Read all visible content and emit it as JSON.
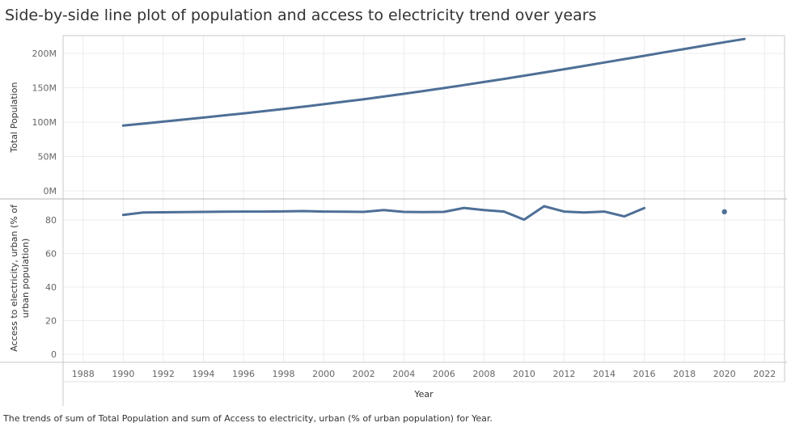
{
  "title": "Side-by-side line plot of population and access to electricity trend over years",
  "caption": "The trends of sum of Total Population and sum of Access to electricity, urban (% of urban population) for Year.",
  "colors": {
    "line": "#4e6f96",
    "grid": "#ececec",
    "border": "#c8c8c8"
  },
  "chart_data": [
    {
      "type": "line",
      "ylabel": "Total Population",
      "xlabel": "Year",
      "ylim": [
        0,
        215000000
      ],
      "yticks": [
        0,
        50000000,
        100000000,
        150000000,
        200000000
      ],
      "ytick_labels": [
        "0M",
        "50M",
        "100M",
        "150M",
        "200M"
      ],
      "grid": true,
      "series": [
        {
          "x": [
            1990,
            1991,
            1992,
            1993,
            1994,
            1995,
            1996,
            1997,
            1998,
            1999,
            2000,
            2001,
            2002,
            2003,
            2004,
            2005,
            2006,
            2007,
            2008,
            2009,
            2010,
            2011,
            2012,
            2013,
            2014,
            2015,
            2016,
            2017,
            2018,
            2019,
            2020,
            2021
          ],
          "y": [
            95000000,
            97800000,
            100700000,
            103600000,
            106600000,
            109600000,
            112700000,
            115900000,
            119100000,
            122500000,
            126000000,
            129600000,
            133300000,
            137200000,
            141200000,
            145300000,
            149500000,
            153900000,
            158300000,
            162800000,
            167500000,
            172200000,
            177000000,
            181800000,
            186700000,
            191600000,
            196500000,
            201500000,
            206400000,
            211300000,
            216200000,
            221000000
          ]
        }
      ]
    },
    {
      "type": "line",
      "ylabel": "Access to electricity, urban (% of urban population)",
      "xlabel": "Year",
      "ylim": [
        0,
        93
      ],
      "yticks": [
        0,
        20,
        40,
        60,
        80
      ],
      "ytick_labels": [
        "0",
        "20",
        "40",
        "60",
        "80"
      ],
      "xlim": [
        1987,
        2023
      ],
      "xticks": [
        1988,
        1990,
        1992,
        1994,
        1996,
        1998,
        2000,
        2002,
        2004,
        2006,
        2008,
        2010,
        2012,
        2014,
        2016,
        2018,
        2020,
        2022
      ],
      "xtick_labels": [
        "1988",
        "1990",
        "1992",
        "1994",
        "1996",
        "1998",
        "2000",
        "2002",
        "2004",
        "2006",
        "2008",
        "2010",
        "2012",
        "2014",
        "2016",
        "2018",
        "2020",
        "2022"
      ],
      "grid": true,
      "series": [
        {
          "x": [
            1990,
            1991,
            1992,
            1993,
            1994,
            1995,
            1996,
            1997,
            1998,
            1999,
            2000,
            2001,
            2002,
            2003,
            2004,
            2005,
            2006,
            2007,
            2008,
            2009,
            2010,
            2011,
            2012,
            2013,
            2014,
            2015,
            2016
          ],
          "y": [
            83.0,
            84.5,
            84.6,
            84.7,
            84.8,
            84.9,
            85.0,
            85.0,
            85.1,
            85.3,
            85.0,
            84.9,
            84.8,
            85.9,
            84.8,
            84.7,
            84.8,
            87.2,
            85.9,
            85.0,
            80.2,
            88.2,
            85.0,
            84.5,
            85.0,
            82.1,
            87.1
          ]
        },
        {
          "x": [
            2020
          ],
          "y": [
            84.9
          ],
          "marker": "point"
        }
      ]
    }
  ]
}
